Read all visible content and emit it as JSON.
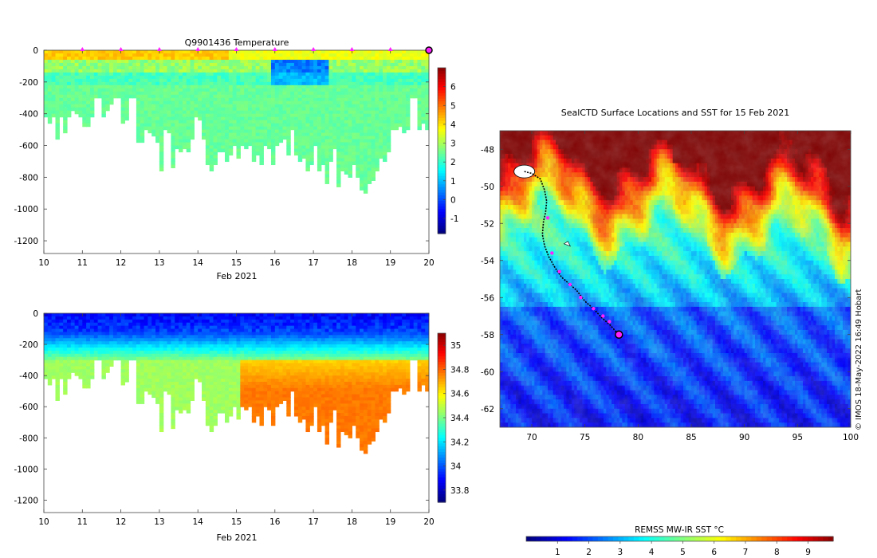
{
  "chart_data": [
    {
      "id": "temperature",
      "type": "heatmap",
      "title": "Q9901436  Temperature",
      "xlabel": "Feb 2021",
      "ylabel": "",
      "xlim": [
        10,
        20
      ],
      "ylim": [
        -1280,
        0
      ],
      "xticks": [
        10,
        11,
        12,
        13,
        14,
        15,
        16,
        17,
        18,
        19,
        20
      ],
      "yticks": [
        0,
        -200,
        -400,
        -600,
        -800,
        -1000,
        -1200
      ],
      "colorbar": {
        "ticks": [
          6,
          5,
          4,
          3,
          2,
          1,
          0,
          -1
        ],
        "range": [
          -1.8,
          7
        ]
      },
      "surface_markers_days": [
        11,
        12,
        13,
        14,
        15,
        16,
        17,
        18,
        19
      ],
      "current_marker_day": 20,
      "profile_max_depth_m": [
        420,
        460,
        420,
        550,
        420,
        520,
        420,
        380,
        400,
        420,
        480,
        470,
        420,
        300,
        300,
        420,
        380,
        340,
        300,
        300,
        460,
        440,
        300,
        300,
        580,
        580,
        500,
        520,
        540,
        580,
        760,
        500,
        520,
        730,
        620,
        640,
        620,
        640,
        560,
        420,
        440,
        560,
        720,
        760,
        720,
        640,
        640,
        700,
        660,
        600,
        680,
        600,
        620,
        600,
        700,
        650,
        720,
        600,
        620,
        720,
        600,
        580,
        560,
        660,
        500,
        660,
        700,
        680,
        760,
        720,
        600,
        760,
        720,
        840,
        700,
        620,
        860,
        760,
        780,
        800,
        720,
        800,
        880,
        900,
        840,
        820,
        760,
        680,
        700,
        640,
        500,
        500,
        480,
        520,
        500,
        300,
        300,
        500,
        450,
        500
      ]
    },
    {
      "id": "salinity",
      "type": "heatmap",
      "title": "",
      "xlabel": "Feb 2021",
      "ylabel": "",
      "xlim": [
        10,
        20
      ],
      "ylim": [
        -1280,
        0
      ],
      "xticks": [
        10,
        11,
        12,
        13,
        14,
        15,
        16,
        17,
        18,
        19,
        20
      ],
      "yticks": [
        0,
        -200,
        -400,
        -600,
        -800,
        -1000,
        -1200
      ],
      "colorbar": {
        "ticks": [
          35,
          34.8,
          34.6,
          34.4,
          34.2,
          34,
          33.8
        ],
        "range": [
          33.7,
          35.1
        ]
      },
      "profile_max_depth_m": [
        420,
        460,
        420,
        550,
        420,
        520,
        420,
        380,
        400,
        420,
        480,
        470,
        420,
        300,
        300,
        420,
        380,
        340,
        300,
        300,
        460,
        440,
        300,
        300,
        580,
        580,
        500,
        520,
        540,
        580,
        760,
        500,
        520,
        730,
        620,
        640,
        620,
        640,
        560,
        420,
        440,
        560,
        720,
        760,
        720,
        640,
        640,
        700,
        660,
        600,
        680,
        600,
        620,
        600,
        700,
        650,
        720,
        600,
        620,
        720,
        600,
        580,
        560,
        660,
        500,
        660,
        700,
        680,
        760,
        720,
        600,
        760,
        720,
        840,
        700,
        620,
        860,
        760,
        780,
        800,
        720,
        800,
        880,
        900,
        840,
        820,
        760,
        680,
        700,
        640,
        500,
        500,
        480,
        520,
        500,
        300,
        300,
        500,
        450,
        500
      ]
    },
    {
      "id": "sst_map",
      "type": "heatmap",
      "title": "SealCTD Surface Locations and SST for 15 Feb 2021",
      "xlabel": "",
      "ylabel": "",
      "xlim": [
        67,
        100
      ],
      "ylim": [
        -63,
        -47
      ],
      "xticks": [
        70,
        75,
        80,
        85,
        90,
        95,
        100
      ],
      "yticks": [
        -48,
        -50,
        -52,
        -54,
        -56,
        -58,
        -60,
        -62
      ],
      "colorbar": {
        "label": "REMSS MW-IR SST °C",
        "ticks": [
          1,
          2,
          3,
          4,
          5,
          6,
          7,
          8,
          9
        ],
        "range": [
          0,
          9.8
        ]
      },
      "track_lon": [
        69.3,
        70.0,
        70.8,
        71.2,
        71.4,
        71.3,
        71.1,
        71.0,
        71.2,
        71.6,
        72.2,
        72.8,
        73.4,
        74.2,
        75.0,
        75.8,
        76.6,
        77.4,
        78.0,
        78.2
      ],
      "track_lat": [
        -49.2,
        -49.3,
        -49.6,
        -50.2,
        -50.8,
        -51.4,
        -51.9,
        -52.6,
        -53.2,
        -53.8,
        -54.4,
        -54.9,
        -55.2,
        -55.6,
        -56.2,
        -56.6,
        -57.1,
        -57.5,
        -57.9,
        -58.05
      ],
      "daily_positions_lon": [
        71.5,
        71.9,
        72.6,
        73.6,
        74.6,
        75.8,
        76.7,
        77.3
      ],
      "daily_positions_lat": [
        -51.7,
        -53.6,
        -54.6,
        -55.3,
        -56.0,
        -56.6,
        -57.0,
        -57.3
      ],
      "current_position": [
        78.2,
        -58.0
      ],
      "release_site": [
        69.3,
        -49.2
      ],
      "islet": [
        73.4,
        -53.1
      ]
    }
  ],
  "colors": {
    "marker_magenta": "#ff22ff",
    "track": "#000000"
  },
  "credit_text": "© IMOS 18-May-2022 16:49 Hobart"
}
